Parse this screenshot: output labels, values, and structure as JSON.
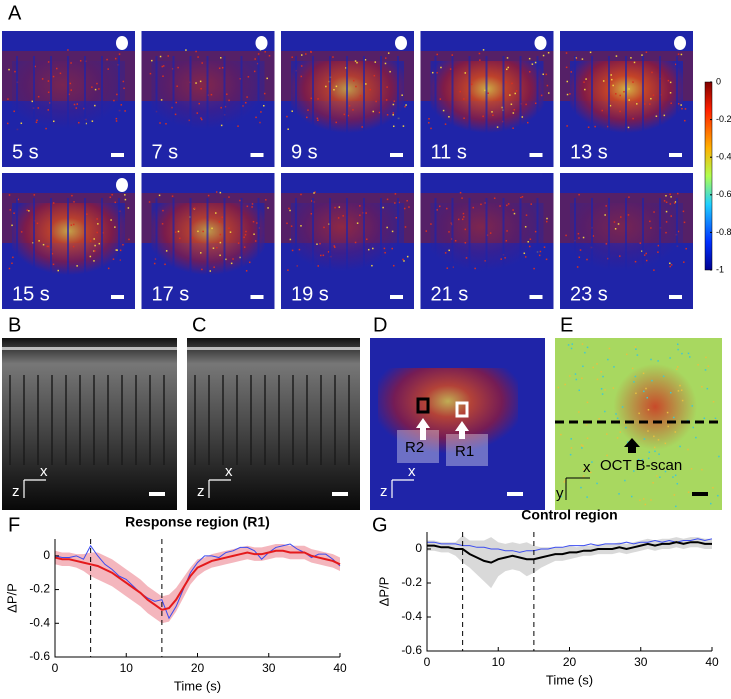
{
  "panel_labels": [
    "A",
    "B",
    "C",
    "D",
    "E",
    "F",
    "G"
  ],
  "panel_a": {
    "times": [
      "5 s",
      "7 s",
      "9 s",
      "11 s",
      "13 s",
      "15 s",
      "17 s",
      "19 s",
      "21 s",
      "23 s"
    ],
    "colorbar": {
      "ylim": [
        -1,
        0
      ],
      "yticks": [
        0,
        -0.2,
        -0.4,
        -0.6,
        -0.8,
        -1
      ]
    }
  },
  "panel_b": {
    "axis_x": "x",
    "axis_z": "z"
  },
  "panel_c": {
    "axis_x": "x",
    "axis_z": "z"
  },
  "panel_d": {
    "axis_x": "x",
    "axis_z": "z",
    "regions": [
      "R2",
      "R1"
    ]
  },
  "panel_e": {
    "axis_x": "x",
    "axis_y": "y",
    "annotation": "OCT B-scan"
  },
  "chart_data": [
    {
      "type": "line",
      "title": "Response region (R1)",
      "xlabel": "Time (s)",
      "ylabel": "ΔP/P",
      "xlim": [
        0,
        40
      ],
      "xticks": [
        0,
        10,
        20,
        30,
        40
      ],
      "ylim": [
        -0.6,
        0.1
      ],
      "yticks": [
        0,
        -0.2,
        -0.4,
        -0.6
      ],
      "vlines": [
        5,
        15
      ],
      "x": [
        0,
        1,
        2,
        3,
        4,
        5,
        6,
        7,
        8,
        9,
        10,
        11,
        12,
        13,
        14,
        15,
        16,
        17,
        18,
        19,
        20,
        21,
        22,
        23,
        24,
        25,
        26,
        27,
        28,
        29,
        30,
        31,
        32,
        33,
        34,
        35,
        36,
        37,
        38,
        39,
        40
      ],
      "series": [
        {
          "color": "#e41a1c",
          "band_color": "#f4b6bd",
          "values": [
            -0.01,
            -0.02,
            -0.02,
            -0.03,
            -0.04,
            -0.05,
            -0.06,
            -0.08,
            -0.1,
            -0.13,
            -0.16,
            -0.19,
            -0.22,
            -0.26,
            -0.29,
            -0.32,
            -0.31,
            -0.26,
            -0.19,
            -0.12,
            -0.07,
            -0.05,
            -0.03,
            -0.02,
            -0.01,
            0,
            0.01,
            0.02,
            0.01,
            0.01,
            0.02,
            0.03,
            0.03,
            0.02,
            0.02,
            0.02,
            0,
            -0.01,
            -0.02,
            -0.03,
            -0.05
          ],
          "error": [
            0.04,
            0.04,
            0.04,
            0.04,
            0.05,
            0.07,
            0.08,
            0.08,
            0.08,
            0.08,
            0.08,
            0.08,
            0.08,
            0.08,
            0.08,
            0.08,
            0.08,
            0.07,
            0.06,
            0.05,
            0.05,
            0.04,
            0.04,
            0.04,
            0.04,
            0.04,
            0.04,
            0.04,
            0.04,
            0.04,
            0.04,
            0.04,
            0.04,
            0.04,
            0.04,
            0.04,
            0.04,
            0.04,
            0.04,
            0.04,
            0.04
          ]
        },
        {
          "color": "#3b4cf0",
          "values": [
            0,
            -0.01,
            -0.01,
            0,
            -0.02,
            0.06,
            0,
            -0.05,
            -0.08,
            -0.12,
            -0.14,
            -0.18,
            -0.22,
            -0.25,
            -0.27,
            -0.26,
            -0.37,
            -0.3,
            -0.2,
            -0.1,
            -0.04,
            0,
            0,
            -0.01,
            0.02,
            0.03,
            0.05,
            0.05,
            0.03,
            -0.02,
            0.02,
            0.05,
            0.06,
            0.07,
            0.04,
            0.02,
            -0.01,
            0.01,
            0.01,
            -0.02,
            -0.06
          ]
        }
      ]
    },
    {
      "type": "line",
      "title": "Control region",
      "xlabel": "Time (s)",
      "ylabel": "ΔP/P",
      "xlim": [
        0,
        40
      ],
      "xticks": [
        0,
        10,
        20,
        30,
        40
      ],
      "ylim": [
        -0.6,
        0.1
      ],
      "yticks": [
        0,
        -0.2,
        -0.4,
        -0.6
      ],
      "vlines": [
        5,
        15
      ],
      "x": [
        0,
        1,
        2,
        3,
        4,
        5,
        6,
        7,
        8,
        9,
        10,
        11,
        12,
        13,
        14,
        15,
        16,
        17,
        18,
        19,
        20,
        21,
        22,
        23,
        24,
        25,
        26,
        27,
        28,
        29,
        30,
        31,
        32,
        33,
        34,
        35,
        36,
        37,
        38,
        39,
        40
      ],
      "series": [
        {
          "color": "#000000",
          "band_color": "#d9d9d9",
          "values": [
            0.02,
            0.02,
            0.01,
            0.01,
            0,
            0,
            -0.03,
            -0.05,
            -0.07,
            -0.08,
            -0.06,
            -0.05,
            -0.04,
            -0.05,
            -0.06,
            -0.06,
            -0.05,
            -0.04,
            -0.03,
            -0.03,
            -0.02,
            -0.02,
            -0.01,
            -0.01,
            0,
            0,
            0,
            0.01,
            0,
            0.01,
            0.02,
            0.03,
            0.02,
            0.03,
            0.03,
            0.04,
            0.03,
            0.04,
            0.04,
            0.03,
            0.03
          ],
          "error": [
            0.03,
            0.03,
            0.03,
            0.03,
            0.04,
            0.08,
            0.08,
            0.1,
            0.12,
            0.15,
            0.1,
            0.08,
            0.08,
            0.08,
            0.1,
            0.08,
            0.06,
            0.05,
            0.04,
            0.04,
            0.04,
            0.03,
            0.03,
            0.03,
            0.03,
            0.03,
            0.03,
            0.03,
            0.03,
            0.03,
            0.03,
            0.03,
            0.03,
            0.03,
            0.03,
            0.03,
            0.03,
            0.03,
            0.03,
            0.03,
            0.03
          ]
        },
        {
          "color": "#3b4cf0",
          "values": [
            0.04,
            0.04,
            0.03,
            0.03,
            0.03,
            0.02,
            0.02,
            0.01,
            0.01,
            0,
            0,
            -0.01,
            -0.01,
            -0.02,
            -0.01,
            -0.01,
            0,
            0,
            0.01,
            0.01,
            0.02,
            0.02,
            0.02,
            0.03,
            0.02,
            0.03,
            0.03,
            0.03,
            0.04,
            0.03,
            0.04,
            0.04,
            0.05,
            0.04,
            0.05,
            0.04,
            0.05,
            0.05,
            0.06,
            0.05,
            0.06
          ]
        }
      ]
    }
  ]
}
